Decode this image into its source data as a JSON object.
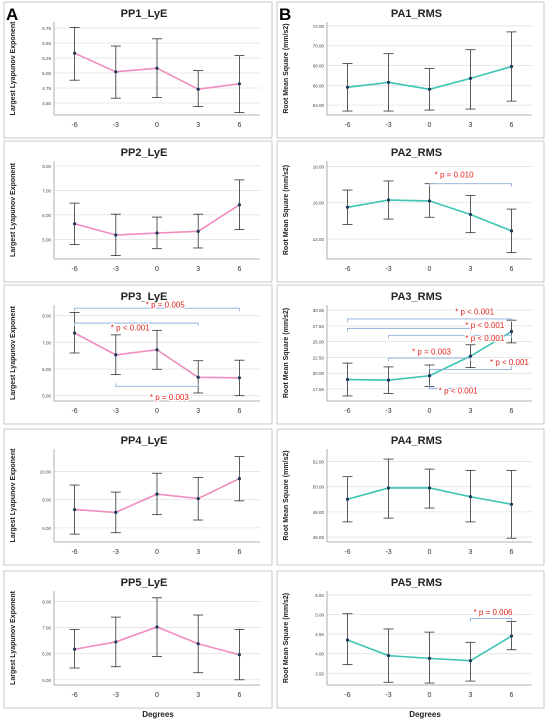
{
  "panel_labels": [
    "A",
    "B"
  ],
  "x_axis_title": "Degrees",
  "colors": {
    "pink": "#f08cbe",
    "teal": "#3cc4b4",
    "bracket": "#8fb0dc",
    "error_bar": "#333333",
    "annotation": "#e0221c",
    "grid": "#e2e2e2",
    "marker": "#1f3b5c"
  },
  "chart_data": [
    {
      "id": "PP1",
      "type": "line",
      "title": "PP1_LyE",
      "ylabel": "Largest Lyapunov Exponent",
      "color": "pink",
      "categories": [
        "-6",
        "-3",
        "0",
        "3",
        "6"
      ],
      "values": [
        5.33,
        5.02,
        5.08,
        4.73,
        4.82
      ],
      "err_low": [
        4.88,
        4.58,
        4.59,
        4.44,
        4.34
      ],
      "err_high": [
        5.76,
        5.45,
        5.57,
        5.04,
        5.29
      ],
      "ylim": [
        4.3,
        5.85
      ],
      "yticks": [
        "4.50",
        "4.75",
        "5.00",
        "5.25",
        "5.50",
        "5.75"
      ],
      "ytick_values": [
        4.5,
        4.75,
        5.0,
        5.25,
        5.5,
        5.75
      ],
      "annotations": []
    },
    {
      "id": "PP2",
      "type": "line",
      "title": "PP2_LyE",
      "ylabel": "Largest Lyapunov Exponent",
      "color": "pink",
      "categories": [
        "-6",
        "-3",
        "0",
        "3",
        "6"
      ],
      "values": [
        5.64,
        5.18,
        5.26,
        5.33,
        6.41
      ],
      "err_low": [
        4.79,
        4.34,
        4.62,
        4.65,
        5.4
      ],
      "err_high": [
        6.48,
        6.03,
        5.91,
        6.03,
        7.43
      ],
      "ylim": [
        4.2,
        8.2
      ],
      "yticks": [
        "5.00",
        "6.00",
        "7.00",
        "8.00"
      ],
      "ytick_values": [
        5.0,
        6.0,
        7.0,
        8.0
      ],
      "annotations": []
    },
    {
      "id": "PP3",
      "type": "line",
      "title": "PP3_LyE",
      "ylabel": "Largest Lyapunov Exponent",
      "color": "pink",
      "categories": [
        "-6",
        "-3",
        "0",
        "3",
        "6"
      ],
      "values": [
        7.35,
        6.53,
        6.72,
        5.69,
        5.67
      ],
      "err_low": [
        6.6,
        5.79,
        5.99,
        5.1,
        5.0
      ],
      "err_high": [
        8.12,
        7.28,
        7.45,
        6.31,
        6.33
      ],
      "ylim": [
        4.8,
        8.4
      ],
      "yticks": [
        "5.00",
        "6.00",
        "7.00",
        "8.00"
      ],
      "ytick_values": [
        5.0,
        6.0,
        7.0,
        8.0
      ],
      "annotations": [
        {
          "from": 0,
          "to": 4,
          "value": 8.28,
          "dir": "down",
          "label": "* p = 0.005",
          "label_x": 2.2,
          "label_value": 8.42
        },
        {
          "from": 0,
          "to": 3,
          "value": 7.72,
          "dir": "down",
          "label": "* p < 0.001",
          "label_x": 1.35,
          "label_value": 7.56
        },
        {
          "from": 1,
          "to": 3,
          "value": 5.35,
          "dir": "up",
          "label": "* p = 0.003",
          "label_x": 2.3,
          "label_value": 4.95
        }
      ]
    },
    {
      "id": "PP4",
      "type": "line",
      "title": "PP4_LyE",
      "ylabel": "Largest Lyapunov Exponent",
      "color": "pink",
      "categories": [
        "-6",
        "-3",
        "0",
        "3",
        "6"
      ],
      "values": [
        8.65,
        8.55,
        9.2,
        9.04,
        9.75
      ],
      "err_low": [
        7.78,
        7.83,
        8.47,
        8.28,
        8.96
      ],
      "err_high": [
        9.52,
        9.27,
        9.94,
        9.79,
        10.53
      ],
      "ylim": [
        7.5,
        10.8
      ],
      "yticks": [
        "8.00",
        "9.00",
        "10.00"
      ],
      "ytick_values": [
        8.0,
        9.0,
        10.0
      ],
      "annotations": []
    },
    {
      "id": "PP5",
      "type": "line",
      "title": "PP5_LyE",
      "ylabel": "Largest Lyapunov Exponent",
      "color": "pink",
      "categories": [
        "-6",
        "-3",
        "0",
        "3",
        "6"
      ],
      "values": [
        6.17,
        6.45,
        7.02,
        6.38,
        5.96
      ],
      "err_low": [
        5.45,
        5.5,
        5.89,
        5.27,
        5.0
      ],
      "err_high": [
        6.93,
        7.4,
        8.14,
        7.48,
        6.93
      ],
      "ylim": [
        4.8,
        8.4
      ],
      "yticks": [
        "5.00",
        "6.00",
        "7.00",
        "8.00"
      ],
      "ytick_values": [
        5.0,
        6.0,
        7.0,
        8.0
      ],
      "annotations": []
    },
    {
      "id": "PA1",
      "type": "line",
      "title": "PA1_RMS",
      "ylabel": "Root Mean Square (mm/s2)",
      "color": "teal",
      "categories": [
        "-6",
        "-3",
        "0",
        "3",
        "6"
      ],
      "values": [
        65.8,
        66.3,
        65.6,
        66.7,
        67.9
      ],
      "err_low": [
        63.4,
        63.4,
        63.5,
        63.6,
        64.4
      ],
      "err_high": [
        68.2,
        69.2,
        67.7,
        69.6,
        71.4
      ],
      "ylim": [
        63.0,
        72.4
      ],
      "yticks": [
        "64.00",
        "66.00",
        "68.00",
        "70.00",
        "72.00"
      ],
      "ytick_values": [
        64,
        66,
        68,
        70,
        72
      ],
      "annotations": []
    },
    {
      "id": "PA2",
      "type": "line",
      "title": "PA2_RMS",
      "ylabel": "Root Mean Square (mm/s2)",
      "color": "teal",
      "categories": [
        "-6",
        "-3",
        "0",
        "3",
        "6"
      ],
      "values": [
        15.75,
        16.15,
        16.1,
        15.35,
        14.45
      ],
      "err_low": [
        14.8,
        15.1,
        15.2,
        14.35,
        13.25
      ],
      "err_high": [
        16.7,
        17.2,
        17.05,
        16.4,
        15.65
      ],
      "ylim": [
        12.9,
        18.3
      ],
      "yticks": [
        "14.00",
        "16.00",
        "18.00"
      ],
      "ytick_values": [
        14,
        16,
        18
      ],
      "annotations": [
        {
          "from": 2,
          "to": 4,
          "value": 17.05,
          "dir": "down",
          "label": "* p = 0.010",
          "label_x": 2.6,
          "label_value": 17.55
        }
      ]
    },
    {
      "id": "PA3",
      "type": "line",
      "title": "PA3_RMS",
      "ylabel": "Root Mean Square (mm/s2)",
      "color": "teal",
      "categories": [
        "-6",
        "-3",
        "0",
        "3",
        "6"
      ],
      "values": [
        19.0,
        18.9,
        19.6,
        22.7,
        26.6
      ],
      "err_low": [
        16.4,
        16.8,
        17.9,
        20.9,
        24.8
      ],
      "err_high": [
        21.6,
        21.0,
        21.3,
        24.5,
        28.4
      ],
      "ylim": [
        15.6,
        30.8
      ],
      "yticks": [
        "17.50",
        "20.00",
        "22.50",
        "25.00",
        "27.50",
        "30.00"
      ],
      "ytick_values": [
        17.5,
        20.0,
        22.5,
        25.0,
        27.5,
        30.0
      ],
      "annotations": [
        {
          "from": 0,
          "to": 4,
          "value": 28.6,
          "dir": "down",
          "label": "* p < 0.001",
          "label_x": 3.1,
          "label_value": 29.8
        },
        {
          "from": 0,
          "to": 3,
          "value": 27.1,
          "dir": "down",
          "label": "* p < 0.001",
          "label_x": 3.35,
          "label_value": 27.6
        },
        {
          "from": 1,
          "to": 4,
          "value": 26.0,
          "dir": "down",
          "label": "* p < 0.001",
          "label_x": 3.35,
          "label_value": 25.6
        },
        {
          "from": 1,
          "to": 3,
          "value": 22.4,
          "dir": "down",
          "label": "* p = 0.003",
          "label_x": 2.05,
          "label_value": 23.4
        },
        {
          "from": 2,
          "to": 4,
          "value": 20.6,
          "dir": "up",
          "label": "* p < 0.001",
          "label_x": 3.95,
          "label_value": 21.8
        },
        {
          "from": 2,
          "to": 3,
          "value": 17.6,
          "dir": "up",
          "label": "* p < 0.001",
          "label_x": 2.7,
          "label_value": 17.3
        }
      ]
    },
    {
      "id": "PA4",
      "type": "line",
      "title": "PA4_RMS",
      "ylabel": "Root Mean Square (mm/s2)",
      "color": "teal",
      "categories": [
        "-6",
        "-3",
        "0",
        "3",
        "6"
      ],
      "values": [
        49.0,
        49.9,
        49.9,
        49.2,
        48.6
      ],
      "err_low": [
        47.2,
        47.5,
        48.3,
        47.2,
        45.9
      ],
      "err_high": [
        50.8,
        52.2,
        51.4,
        51.3,
        51.3
      ],
      "ylim": [
        45.6,
        53.0
      ],
      "yticks": [
        "46.00",
        "48.00",
        "50.00",
        "52.00"
      ],
      "ytick_values": [
        46,
        48,
        50,
        52
      ],
      "annotations": []
    },
    {
      "id": "PA5",
      "type": "line",
      "title": "PA5_RMS",
      "ylabel": "Root Mean Square (mm/s2)",
      "color": "teal",
      "categories": [
        "-6",
        "-3",
        "0",
        "3",
        "6"
      ],
      "values": [
        4.35,
        3.95,
        3.88,
        3.82,
        4.45
      ],
      "err_low": [
        3.72,
        3.27,
        3.25,
        3.3,
        4.1
      ],
      "err_high": [
        5.02,
        4.63,
        4.55,
        4.29,
        4.82
      ],
      "ylim": [
        3.2,
        5.6
      ],
      "yticks": [
        "3.50",
        "4.00",
        "4.50",
        "5.00",
        "5.50"
      ],
      "ytick_values": [
        3.5,
        4.0,
        4.5,
        5.0,
        5.5
      ],
      "annotations": [
        {
          "from": 3,
          "to": 4,
          "value": 4.9,
          "dir": "down",
          "label": "* p = 0.006",
          "label_x": 3.55,
          "label_value": 5.07
        }
      ]
    }
  ]
}
